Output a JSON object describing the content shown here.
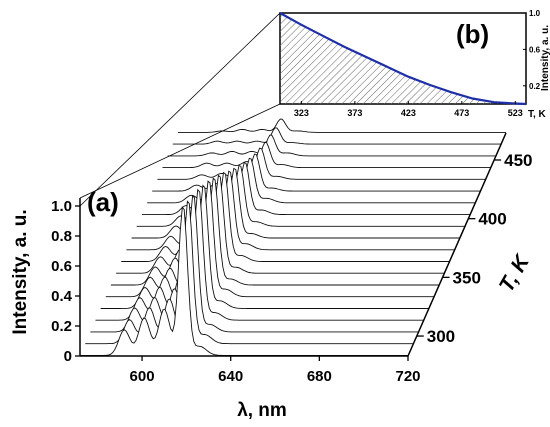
{
  "chart_data": [
    {
      "type": "line",
      "panel_label": "(a)",
      "xlabel": "λ, nm",
      "ylabel": "Intensity, a. u.",
      "zlabel": "T, K",
      "x_ticks": [
        600,
        640,
        680,
        720
      ],
      "x_range": [
        572,
        720
      ],
      "y_ticks": [
        "0",
        "0.2",
        "0.4",
        "0.6",
        "0.8",
        "1.0"
      ],
      "y_range": [
        0,
        1.0
      ],
      "z_ticks": [
        300,
        350,
        400,
        450
      ],
      "z_range": [
        283,
        473
      ],
      "peaks_nm": [
        592,
        601,
        610,
        618.5,
        626
      ],
      "peak_widths_nm": [
        2.5,
        2.5,
        2.5,
        2.0,
        3.0
      ],
      "series": [
        {
          "t": 283,
          "amps": [
            0.17,
            0.25,
            0.31,
            1.0,
            0.06
          ]
        },
        {
          "t": 293,
          "amps": [
            0.16,
            0.24,
            0.3,
            0.96,
            0.06
          ]
        },
        {
          "t": 303,
          "amps": [
            0.16,
            0.23,
            0.29,
            0.92,
            0.05
          ]
        },
        {
          "t": 313,
          "amps": [
            0.15,
            0.22,
            0.28,
            0.88,
            0.05
          ]
        },
        {
          "t": 323,
          "amps": [
            0.14,
            0.21,
            0.26,
            0.83,
            0.05
          ]
        },
        {
          "t": 333,
          "amps": [
            0.13,
            0.19,
            0.24,
            0.78,
            0.05
          ]
        },
        {
          "t": 343,
          "amps": [
            0.12,
            0.18,
            0.22,
            0.72,
            0.04
          ]
        },
        {
          "t": 353,
          "amps": [
            0.11,
            0.16,
            0.2,
            0.66,
            0.04
          ]
        },
        {
          "t": 363,
          "amps": [
            0.1,
            0.14,
            0.18,
            0.6,
            0.04
          ]
        },
        {
          "t": 373,
          "amps": [
            0.09,
            0.12,
            0.16,
            0.53,
            0.04
          ]
        },
        {
          "t": 383,
          "amps": [
            0.08,
            0.11,
            0.14,
            0.47,
            0.03
          ]
        },
        {
          "t": 393,
          "amps": [
            0.07,
            0.09,
            0.12,
            0.41,
            0.03
          ]
        },
        {
          "t": 403,
          "amps": [
            0.06,
            0.08,
            0.1,
            0.35,
            0.03
          ]
        },
        {
          "t": 413,
          "amps": [
            0.05,
            0.06,
            0.08,
            0.3,
            0.03
          ]
        },
        {
          "t": 423,
          "amps": [
            0.04,
            0.05,
            0.06,
            0.25,
            0.02
          ]
        },
        {
          "t": 433,
          "amps": [
            0.03,
            0.04,
            0.05,
            0.21,
            0.02
          ]
        },
        {
          "t": 443,
          "amps": [
            0.03,
            0.03,
            0.04,
            0.17,
            0.02
          ]
        },
        {
          "t": 453,
          "amps": [
            0.02,
            0.03,
            0.03,
            0.14,
            0.02
          ]
        },
        {
          "t": 463,
          "amps": [
            0.02,
            0.02,
            0.02,
            0.11,
            0.01
          ]
        },
        {
          "t": 473,
          "amps": [
            0.01,
            0.02,
            0.02,
            0.09,
            0.01
          ]
        }
      ]
    },
    {
      "type": "area",
      "panel_label": "(b)",
      "xlabel": "T, K",
      "ylabel": "Intensity, a. u.",
      "x_ticks": [
        323,
        373,
        423,
        473,
        523
      ],
      "x_range": [
        303,
        533
      ],
      "y_ticks": [
        "0.2",
        "0.6",
        "1.0"
      ],
      "y_range": [
        0,
        1.0
      ],
      "line_color": "#1f2fa8",
      "x": [
        303,
        323,
        343,
        363,
        383,
        403,
        423,
        443,
        463,
        483,
        503,
        523,
        533
      ],
      "y": [
        1.0,
        0.87,
        0.75,
        0.63,
        0.52,
        0.41,
        0.3,
        0.21,
        0.13,
        0.06,
        0.02,
        0.005,
        0.0
      ]
    }
  ]
}
